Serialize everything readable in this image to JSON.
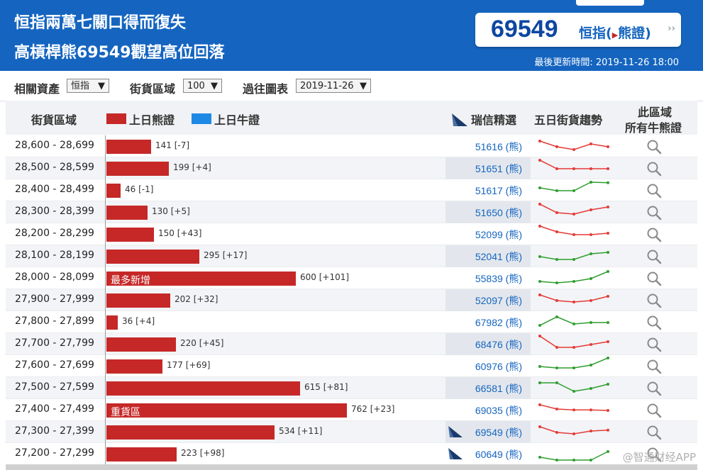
{
  "header": {
    "title_line1": "恒指兩萬七關口得而復失",
    "title_line2": "高槓桿熊69549觀望高位回落",
    "code_number": "69549",
    "code_name_prefix": "恒指(",
    "code_name_bear": "熊證",
    "code_name_suffix": ")",
    "update_time": "最後更新時間: 2019-11-26 18:00"
  },
  "filters": {
    "asset_label": "相關資產",
    "asset_value": "恒指",
    "range_label": "街貨區域",
    "range_value": "100",
    "date_label": "過往圖表",
    "date_value": "2019-11-26"
  },
  "columns": {
    "range": "街貨區域",
    "bear_legend": "上日熊證",
    "bull_legend": "上日牛證",
    "pick": "瑞信精選",
    "trend": "五日街貨趨勢",
    "all_line1": "此區域",
    "all_line2": "所有牛熊證"
  },
  "colors": {
    "bear": "#c62828",
    "bull": "#1e88e5",
    "up": "#2e9e2e",
    "down": "#e53935",
    "link": "#1565c0",
    "header_bg": "#1565c0"
  },
  "chart_data": {
    "type": "bar",
    "series": [
      {
        "name": "上日熊證"
      }
    ],
    "rows": [
      {
        "range": "28,600 - 28,699",
        "value": 141,
        "change": "141 [-7]",
        "label": "",
        "pick": "51616 (熊)",
        "logo": false,
        "trend": "down",
        "spark": [
          5,
          3,
          2,
          4,
          3
        ]
      },
      {
        "range": "28,500 - 28,599",
        "value": 199,
        "change": "199 [+4]",
        "label": "",
        "pick": "51651 (熊)",
        "logo": false,
        "trend": "down",
        "spark": [
          6,
          3,
          3,
          3,
          3
        ]
      },
      {
        "range": "28,400 - 28,499",
        "value": 46,
        "change": "46 [-1]",
        "label": "",
        "pick": "51617 (熊)",
        "logo": false,
        "trend": "up",
        "spark": [
          4,
          3,
          3,
          6,
          5.8
        ]
      },
      {
        "range": "28,300 - 28,399",
        "value": 130,
        "change": "130 [+5]",
        "label": "",
        "pick": "51650 (熊)",
        "logo": false,
        "trend": "down",
        "spark": [
          6,
          3,
          2.5,
          4,
          5
        ]
      },
      {
        "range": "28,200 - 28,299",
        "value": 150,
        "change": "150 [+43]",
        "label": "",
        "pick": "52099 (熊)",
        "logo": false,
        "trend": "down",
        "spark": [
          6,
          4,
          3,
          3,
          3.5
        ]
      },
      {
        "range": "28,100 - 28,199",
        "value": 295,
        "change": "295 [+17]",
        "label": "",
        "pick": "52041 (熊)",
        "logo": false,
        "trend": "up",
        "spark": [
          3,
          2,
          2,
          4,
          4.5
        ]
      },
      {
        "range": "28,000 - 28,099",
        "value": 600,
        "change": "600 [+101]",
        "label": "最多新增",
        "pick": "55839 (熊)",
        "logo": false,
        "trend": "up",
        "spark": [
          2,
          1.5,
          2,
          3,
          5.5
        ]
      },
      {
        "range": "27,900 - 27,999",
        "value": 202,
        "change": "202 [+32]",
        "label": "",
        "pick": "52097 (熊)",
        "logo": false,
        "trend": "down",
        "spark": [
          5,
          3,
          2.5,
          3,
          4.5
        ]
      },
      {
        "range": "27,800 - 27,899",
        "value": 36,
        "change": "36 [+4]",
        "label": "",
        "pick": "67982 (熊)",
        "logo": false,
        "trend": "up",
        "spark": [
          2,
          5,
          2.5,
          3,
          3
        ]
      },
      {
        "range": "27,700 - 27,799",
        "value": 220,
        "change": "220 [+45]",
        "label": "",
        "pick": "68476 (熊)",
        "logo": false,
        "trend": "down",
        "spark": [
          6,
          2,
          2,
          3,
          4
        ]
      },
      {
        "range": "27,600 - 27,699",
        "value": 177,
        "change": "177 [+69]",
        "label": "",
        "pick": "60976 (熊)",
        "logo": false,
        "trend": "up",
        "spark": [
          3,
          2.5,
          2.5,
          3.5,
          6
        ]
      },
      {
        "range": "27,500 - 27,599",
        "value": 615,
        "change": "615 [+81]",
        "label": "",
        "pick": "66581 (熊)",
        "logo": false,
        "trend": "up",
        "spark": [
          5,
          5,
          2,
          3,
          4.5
        ]
      },
      {
        "range": "27,400 - 27,499",
        "value": 762,
        "change": "762 [+23]",
        "label": "重貨區",
        "pick": "69035 (熊)",
        "logo": false,
        "trend": "down",
        "spark": [
          5,
          3.5,
          3.2,
          3.2,
          3
        ]
      },
      {
        "range": "27,300 - 27,399",
        "value": 534,
        "change": "534 [+11]",
        "label": "",
        "pick": "69549 (熊)",
        "logo": true,
        "trend": "down",
        "spark": [
          5,
          3,
          2.5,
          3.5,
          3.8
        ]
      },
      {
        "range": "27,200 - 27,299",
        "value": 223,
        "change": "223 [+98]",
        "label": "",
        "pick": "60649 (熊)",
        "logo": true,
        "trend": "up",
        "spark": [
          2,
          1,
          1,
          1,
          4
        ]
      }
    ]
  },
  "watermark": "@智通财经APP"
}
